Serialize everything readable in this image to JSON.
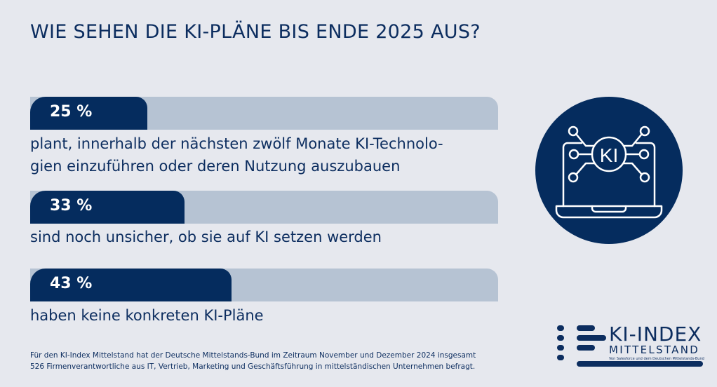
{
  "title": "WIE SEHEN DIE KI-PLÄNE BIS ENDE 2025 AUS?",
  "colors": {
    "background": "#e6e8ee",
    "fill": "#052c5e",
    "track": "#b6c3d3",
    "text": "#0c2d5f"
  },
  "chart_data": {
    "type": "bar",
    "orientation": "horizontal",
    "title": "WIE SEHEN DIE KI-PLÄNE BIS ENDE 2025 AUS?",
    "xlim": [
      0,
      100
    ],
    "categories": [
      "plant, innerhalb der nächsten zwölf Monate KI-Technologien einzuführen oder deren Nutzung auszubauen",
      "sind noch unsicher, ob sie auf KI setzen werden",
      "haben keine konkreten KI-Pläne"
    ],
    "values": [
      25,
      33,
      43
    ],
    "data_labels": [
      "25 %",
      "33 %",
      "43 %"
    ],
    "description_lines": [
      [
        "plant, innerhalb der nächsten zwölf Monate KI-Technolo-",
        "gien einzuführen oder deren Nutzung auszubauen"
      ],
      [
        "sind noch unsicher, ob sie auf KI setzen werden"
      ],
      [
        "haben keine konkreten KI-Pläne"
      ]
    ]
  },
  "icon": {
    "name": "laptop-ki-icon",
    "label": "KI"
  },
  "footer": [
    "Für den KI-Index Mittelstand hat der Deutsche Mittelstands-Bund im Zeitraum November und Dezember 2024 insgesamt",
    "526 Firmenverantwortliche aus IT, Vertrieb, Marketing und Geschäftsführung in mittelständischen Unternehmen befragt."
  ],
  "logo": {
    "line1": "KI-INDEX",
    "line2": "MITTELSTAND",
    "line3": "Von Salesforce und dem Deutschen Mittelstands-Bund"
  }
}
